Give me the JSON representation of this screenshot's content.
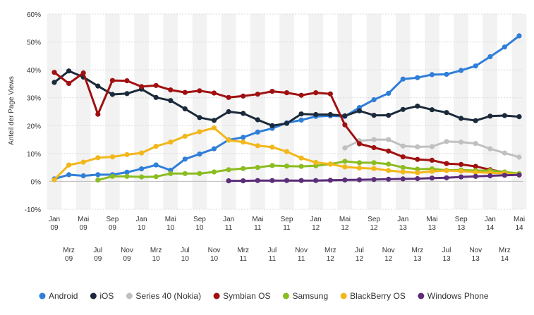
{
  "chart_data": {
    "type": "line",
    "title": "",
    "ylabel": "Anteil der Page Views",
    "ylim": [
      -10,
      60
    ],
    "yticks": [
      "-10%",
      "0%",
      "10%",
      "20%",
      "30%",
      "40%",
      "50%",
      "60%"
    ],
    "grid": "horizontal",
    "legend_position": "bottom",
    "x_tick_labels": [
      [
        "Jan",
        "09"
      ],
      [
        "Mrz",
        "09"
      ],
      [
        "Mai",
        "09"
      ],
      [
        "Jul",
        "09"
      ],
      [
        "Sep",
        "09"
      ],
      [
        "Nov",
        "09"
      ],
      [
        "Jan",
        "10"
      ],
      [
        "Mrz",
        "10"
      ],
      [
        "Mai",
        "10"
      ],
      [
        "Jul",
        "10"
      ],
      [
        "Sep",
        "10"
      ],
      [
        "Nov",
        "10"
      ],
      [
        "Jan",
        "11"
      ],
      [
        "Mrz",
        "11"
      ],
      [
        "Mai",
        "11"
      ],
      [
        "Jul",
        "11"
      ],
      [
        "Sep",
        "11"
      ],
      [
        "Nov",
        "11"
      ],
      [
        "Jan",
        "12"
      ],
      [
        "Mrz",
        "12"
      ],
      [
        "Mai",
        "12"
      ],
      [
        "Jul",
        "12"
      ],
      [
        "Sep",
        "12"
      ],
      [
        "Nov",
        "12"
      ],
      [
        "Jan",
        "13"
      ],
      [
        "Mrz",
        "13"
      ],
      [
        "Mai",
        "13"
      ],
      [
        "Jul",
        "13"
      ],
      [
        "Sep",
        "13"
      ],
      [
        "Nov",
        "13"
      ],
      [
        "Jan",
        "14"
      ],
      [
        "Mrz",
        "14"
      ],
      [
        "Mai",
        "14"
      ]
    ],
    "series": [
      {
        "name": "Android",
        "color": "#2f7ed8",
        "values": [
          0.9,
          2.4,
          2.0,
          2.4,
          2.4,
          3.3,
          4.5,
          5.9,
          4.0,
          8.0,
          9.8,
          11.7,
          14.9,
          15.8,
          17.7,
          19.0,
          21.0,
          22.0,
          23.3,
          23.5,
          23.3,
          26.5,
          29.3,
          31.6,
          36.7,
          37.2,
          38.3,
          38.4,
          39.8,
          41.4,
          44.7,
          48.2,
          52.2
        ]
      },
      {
        "name": "iOS",
        "color": "#1b2a3a",
        "values": [
          35.5,
          39.6,
          37.4,
          34.2,
          31.2,
          31.5,
          33.1,
          30.1,
          29.0,
          26.0,
          22.9,
          21.9,
          25.0,
          24.4,
          22.1,
          20.0,
          20.8,
          24.2,
          24.0,
          24.0,
          23.5,
          25.3,
          23.7,
          23.7,
          25.8,
          27.0,
          25.7,
          24.7,
          22.6,
          21.8,
          23.4,
          23.6,
          23.2
        ]
      },
      {
        "name": "Series 40 (Nokia)",
        "color": "#c0c0c0",
        "values": [
          null,
          null,
          null,
          null,
          null,
          null,
          null,
          null,
          null,
          null,
          null,
          null,
          null,
          null,
          null,
          null,
          null,
          null,
          null,
          null,
          12.0,
          14.6,
          15.0,
          15.0,
          12.7,
          12.4,
          12.5,
          14.3,
          14.1,
          13.6,
          11.7,
          10.2,
          8.7
        ]
      },
      {
        "name": "Symbian OS",
        "color": "#a01010",
        "values": [
          39.1,
          35.1,
          38.9,
          24.1,
          36.2,
          36.1,
          34.0,
          34.4,
          32.8,
          31.9,
          32.5,
          31.7,
          30.1,
          30.6,
          31.3,
          32.3,
          31.8,
          30.9,
          31.8,
          31.4,
          20.3,
          13.5,
          12.1,
          10.9,
          8.8,
          7.9,
          7.6,
          6.4,
          6.1,
          5.4,
          4.2,
          3.3,
          2.4
        ]
      },
      {
        "name": "Samsung",
        "color": "#8bbc21",
        "values": [
          null,
          null,
          null,
          0.5,
          1.8,
          1.8,
          1.6,
          1.7,
          2.8,
          2.8,
          2.8,
          3.4,
          4.2,
          4.6,
          5.0,
          5.7,
          5.5,
          5.4,
          5.6,
          6.2,
          7.2,
          6.7,
          6.7,
          6.2,
          5.0,
          4.4,
          4.5,
          4.0,
          4.1,
          3.9,
          3.9,
          3.4,
          2.8
        ]
      },
      {
        "name": "BlackBerry OS",
        "color": "#f2b71a",
        "values": [
          0.6,
          5.9,
          6.9,
          8.5,
          8.8,
          9.6,
          10.2,
          12.6,
          14.1,
          16.2,
          17.8,
          19.2,
          14.8,
          14.1,
          12.8,
          12.3,
          10.7,
          8.4,
          6.8,
          6.2,
          5.2,
          4.8,
          4.6,
          3.9,
          3.4,
          3.1,
          3.6,
          3.9,
          3.7,
          3.3,
          3.1,
          2.9,
          2.3
        ]
      },
      {
        "name": "Windows Phone",
        "color": "#5b2d7a",
        "values": [
          null,
          null,
          null,
          null,
          null,
          null,
          null,
          null,
          null,
          null,
          null,
          null,
          0.2,
          0.2,
          0.3,
          0.3,
          0.3,
          0.3,
          0.3,
          0.4,
          0.5,
          0.6,
          0.7,
          0.8,
          0.9,
          1.0,
          1.2,
          1.3,
          1.6,
          1.8,
          2.0,
          2.2,
          2.3
        ]
      }
    ]
  }
}
